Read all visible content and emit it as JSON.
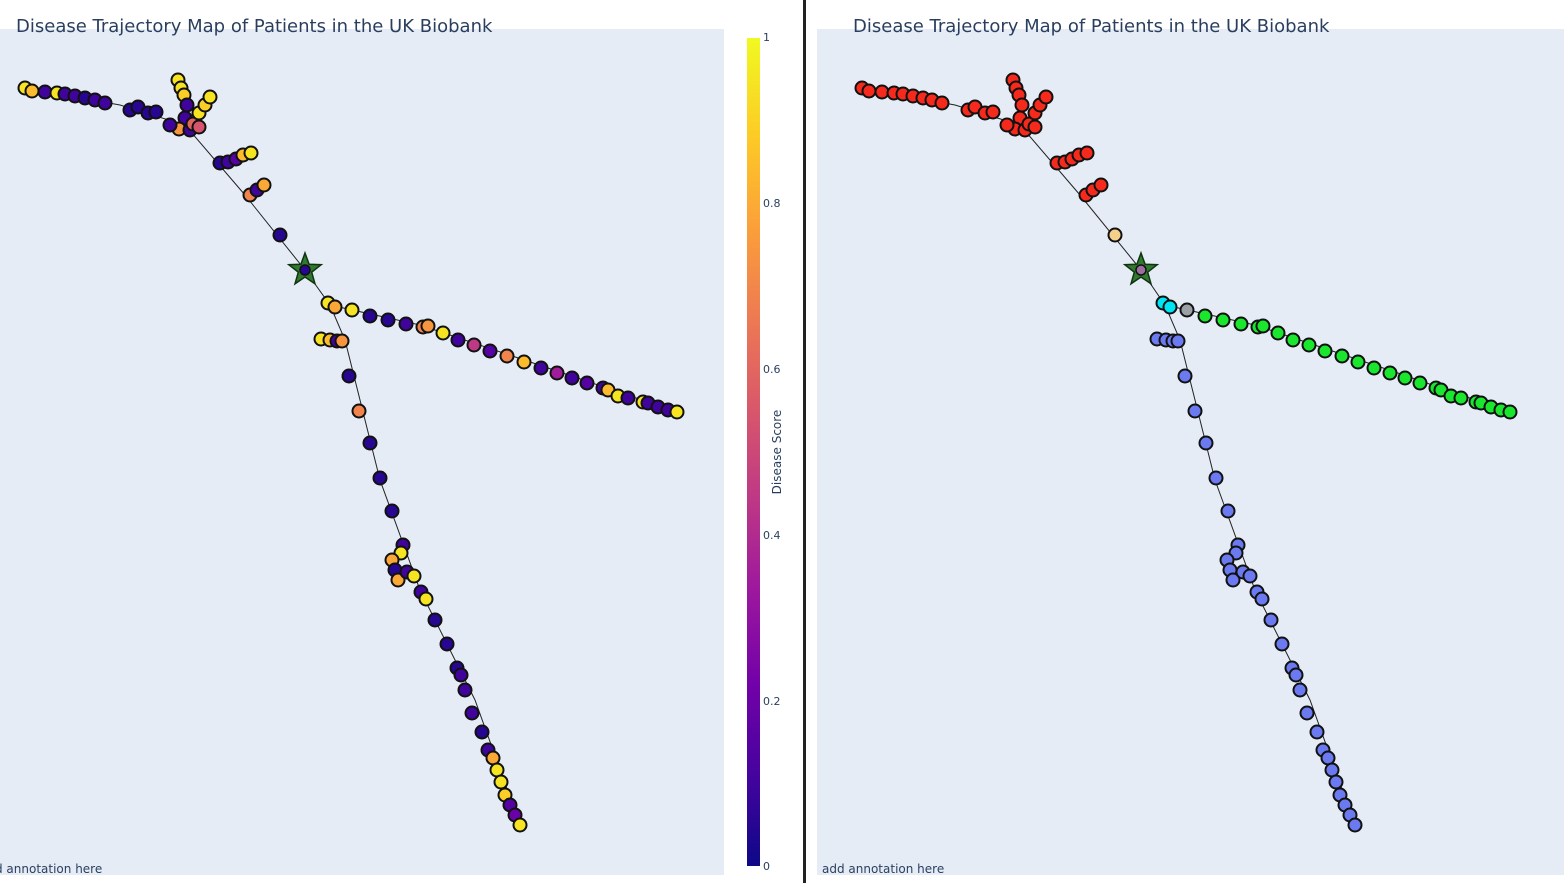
{
  "panels": {
    "left": {
      "title": "Disease Trajectory Map of Patients in the UK Biobank",
      "annotation": "d annotation here"
    },
    "right": {
      "title": "Disease Trajectory Map of Patients in the UK Biobank",
      "annotation": "add annotation here"
    }
  },
  "colorbar": {
    "title": "Disease Score",
    "ticks": [
      "0",
      "0.2",
      "0.4",
      "0.6",
      "0.8",
      "1"
    ],
    "colors": [
      "#0d0887",
      "#46039f",
      "#7201a8",
      "#9c179e",
      "#bd3786",
      "#d8576b",
      "#ed7953",
      "#fb9f3a",
      "#fdca26",
      "#f0f921"
    ]
  },
  "chart_data": [
    {
      "type": "scatter",
      "title": "Disease Trajectory Map of Patients in the UK Biobank",
      "color_by": "Disease Score",
      "root": {
        "x": 305,
        "y": 270,
        "score": 0.05
      },
      "edges": [
        [
          [
            25,
            88
          ],
          [
            120,
            105
          ],
          [
            185,
            125
          ],
          [
            245,
            195
          ],
          [
            305,
            270
          ]
        ],
        [
          [
            178,
            80
          ],
          [
            190,
            130
          ]
        ],
        [
          [
            208,
            97
          ],
          [
            190,
            130
          ]
        ],
        [
          [
            305,
            270
          ],
          [
            330,
            305
          ],
          [
            420,
            325
          ],
          [
            560,
            372
          ],
          [
            677,
            412
          ]
        ],
        [
          [
            330,
            305
          ],
          [
            345,
            340
          ],
          [
            380,
            480
          ],
          [
            420,
            590
          ],
          [
            475,
            700
          ],
          [
            520,
            825
          ]
        ]
      ],
      "series": [
        {
          "name": "branch-1",
          "group": "red",
          "points": [
            [
              25,
              88,
              0.95
            ],
            [
              32,
              91,
              0.85
            ],
            [
              45,
              92,
              0.1
            ],
            [
              57,
              93,
              0.95
            ],
            [
              65,
              94,
              0.1
            ],
            [
              75,
              96,
              0.1
            ],
            [
              85,
              98,
              0.05
            ],
            [
              95,
              100,
              0.1
            ],
            [
              105,
              103,
              0.1
            ],
            [
              130,
              110,
              0.05
            ],
            [
              138,
              107,
              0.05
            ],
            [
              148,
              113,
              0.05
            ],
            [
              156,
              112,
              0.05
            ]
          ]
        },
        {
          "name": "branch-2",
          "group": "red",
          "points": [
            [
              178,
              80,
              0.95
            ],
            [
              181,
              88,
              0.95
            ],
            [
              184,
              95,
              0.9
            ],
            [
              187,
              105,
              0.1
            ],
            [
              185,
              118,
              0.1
            ],
            [
              179,
              129,
              0.75
            ],
            [
              190,
              130,
              0.1
            ],
            [
              193,
              124,
              0.6
            ],
            [
              199,
              127,
              0.55
            ],
            [
              199,
              113,
              0.95
            ],
            [
              205,
              105,
              0.9
            ],
            [
              210,
              97,
              0.95
            ],
            [
              170,
              125,
              0.1
            ]
          ]
        },
        {
          "name": "branch-3",
          "group": "red",
          "points": [
            [
              220,
              163,
              0.05
            ],
            [
              228,
              162,
              0.1
            ],
            [
              236,
              159,
              0.15
            ],
            [
              243,
              155,
              0.85
            ],
            [
              251,
              153,
              0.95
            ],
            [
              250,
              195,
              0.7
            ],
            [
              257,
              190,
              0.1
            ],
            [
              264,
              185,
              0.8
            ],
            [
              280,
              235,
              0.05
            ]
          ]
        },
        {
          "name": "branch-4",
          "group": "green",
          "points": [
            [
              328,
              303,
              0.95
            ],
            [
              335,
              307,
              0.8
            ],
            [
              352,
              310,
              0.95
            ],
            [
              370,
              316,
              0.05
            ],
            [
              388,
              320,
              0.05
            ],
            [
              406,
              324,
              0.1
            ],
            [
              423,
              327,
              0.7
            ],
            [
              428,
              326,
              0.75
            ],
            [
              443,
              333,
              0.95
            ],
            [
              458,
              340,
              0.1
            ],
            [
              474,
              345,
              0.45
            ],
            [
              490,
              351,
              0.15
            ],
            [
              507,
              356,
              0.7
            ],
            [
              524,
              362,
              0.85
            ],
            [
              541,
              368,
              0.1
            ],
            [
              557,
              373,
              0.35
            ],
            [
              572,
              378,
              0.1
            ],
            [
              587,
              383,
              0.15
            ],
            [
              603,
              388,
              0.1
            ],
            [
              608,
              390,
              0.85
            ],
            [
              618,
              396,
              0.95
            ],
            [
              628,
              398,
              0.1
            ],
            [
              643,
              402,
              0.95
            ],
            [
              648,
              403,
              0.1
            ],
            [
              658,
              407,
              0.1
            ],
            [
              668,
              410,
              0.1
            ],
            [
              677,
              412,
              0.95
            ]
          ]
        },
        {
          "name": "branch-5",
          "group": "blue",
          "points": [
            [
              321,
              339,
              0.95
            ],
            [
              330,
              340,
              0.85
            ],
            [
              337,
              341,
              0.1
            ],
            [
              342,
              341,
              0.75
            ],
            [
              349,
              376,
              0.05
            ],
            [
              359,
              411,
              0.7
            ],
            [
              370,
              443,
              0.05
            ],
            [
              380,
              478,
              0.05
            ],
            [
              392,
              511,
              0.05
            ],
            [
              403,
              545,
              0.1
            ],
            [
              401,
              553,
              0.95
            ],
            [
              392,
              560,
              0.8
            ],
            [
              395,
              570,
              0.05
            ],
            [
              398,
              580,
              0.8
            ],
            [
              407,
              572,
              0.1
            ],
            [
              414,
              576,
              0.95
            ],
            [
              421,
              592,
              0.1
            ],
            [
              426,
              599,
              0.95
            ],
            [
              435,
              620,
              0.05
            ],
            [
              447,
              644,
              0.05
            ],
            [
              457,
              668,
              0.05
            ],
            [
              461,
              675,
              0.1
            ],
            [
              465,
              690,
              0.1
            ],
            [
              472,
              713,
              0.1
            ],
            [
              482,
              732,
              0.05
            ],
            [
              488,
              750,
              0.1
            ],
            [
              493,
              758,
              0.8
            ],
            [
              497,
              770,
              0.95
            ],
            [
              501,
              782,
              0.95
            ],
            [
              505,
              795,
              0.9
            ],
            [
              510,
              805,
              0.15
            ],
            [
              515,
              815,
              0.2
            ],
            [
              520,
              825,
              0.95
            ]
          ]
        }
      ]
    },
    {
      "type": "scatter",
      "title": "Disease Trajectory Map of Patients in the UK Biobank",
      "color_by": "group",
      "group_colors": {
        "red": "#f52a1c",
        "green": "#19e62d",
        "blue": "#6b7af0",
        "cyan": "#00e5f5",
        "gray": "#9aa0a6",
        "tan": "#f5d08a"
      },
      "root": {
        "x": 1141,
        "y": 270,
        "color": "#9b6fa0"
      },
      "edges": [
        [
          [
            862,
            88
          ],
          [
            955,
            105
          ],
          [
            1020,
            125
          ],
          [
            1080,
            195
          ],
          [
            1141,
            270
          ]
        ],
        [
          [
            1013,
            80
          ],
          [
            1025,
            130
          ]
        ],
        [
          [
            1045,
            97
          ],
          [
            1025,
            130
          ]
        ],
        [
          [
            1141,
            270
          ],
          [
            1165,
            305
          ],
          [
            1255,
            325
          ],
          [
            1395,
            372
          ],
          [
            1510,
            412
          ]
        ],
        [
          [
            1165,
            305
          ],
          [
            1180,
            340
          ],
          [
            1215,
            480
          ],
          [
            1255,
            590
          ],
          [
            1310,
            700
          ],
          [
            1355,
            825
          ]
        ]
      ],
      "series": [
        {
          "name": "red",
          "color": "#f52a1c",
          "points": [
            [
              862,
              88
            ],
            [
              869,
              91
            ],
            [
              882,
              92
            ],
            [
              894,
              93
            ],
            [
              903,
              94
            ],
            [
              913,
              96
            ],
            [
              923,
              98
            ],
            [
              932,
              100
            ],
            [
              942,
              103
            ],
            [
              968,
              110
            ],
            [
              975,
              107
            ],
            [
              985,
              113
            ],
            [
              993,
              112
            ],
            [
              1013,
              80
            ],
            [
              1016,
              88
            ],
            [
              1019,
              95
            ],
            [
              1022,
              105
            ],
            [
              1020,
              118
            ],
            [
              1015,
              129
            ],
            [
              1025,
              130
            ],
            [
              1029,
              124
            ],
            [
              1035,
              127
            ],
            [
              1035,
              113
            ],
            [
              1040,
              105
            ],
            [
              1046,
              97
            ],
            [
              1007,
              125
            ],
            [
              1057,
              163
            ],
            [
              1065,
              162
            ],
            [
              1072,
              159
            ],
            [
              1079,
              155
            ],
            [
              1087,
              153
            ],
            [
              1086,
              195
            ],
            [
              1093,
              190
            ],
            [
              1101,
              185
            ]
          ]
        },
        {
          "name": "tan",
          "color": "#f5d08a",
          "points": [
            [
              1115,
              235
            ]
          ]
        },
        {
          "name": "cyan",
          "color": "#00e5f5",
          "points": [
            [
              1163,
              303
            ],
            [
              1170,
              307
            ]
          ]
        },
        {
          "name": "gray",
          "color": "#9aa0a6",
          "points": [
            [
              1187,
              310
            ]
          ]
        },
        {
          "name": "green",
          "color": "#19e62d",
          "points": [
            [
              1205,
              316
            ],
            [
              1223,
              320
            ],
            [
              1241,
              324
            ],
            [
              1258,
              327
            ],
            [
              1263,
              326
            ],
            [
              1278,
              333
            ],
            [
              1293,
              340
            ],
            [
              1309,
              345
            ],
            [
              1325,
              351
            ],
            [
              1342,
              356
            ],
            [
              1358,
              362
            ],
            [
              1374,
              368
            ],
            [
              1390,
              373
            ],
            [
              1405,
              378
            ],
            [
              1420,
              383
            ],
            [
              1436,
              388
            ],
            [
              1441,
              390
            ],
            [
              1451,
              396
            ],
            [
              1461,
              398
            ],
            [
              1476,
              402
            ],
            [
              1481,
              403
            ],
            [
              1491,
              407
            ],
            [
              1501,
              410
            ],
            [
              1510,
              412
            ]
          ]
        },
        {
          "name": "blue",
          "color": "#6b7af0",
          "points": [
            [
              1157,
              339
            ],
            [
              1166,
              340
            ],
            [
              1173,
              341
            ],
            [
              1178,
              341
            ],
            [
              1185,
              376
            ],
            [
              1195,
              411
            ],
            [
              1206,
              443
            ],
            [
              1216,
              478
            ],
            [
              1228,
              511
            ],
            [
              1238,
              545
            ],
            [
              1236,
              553
            ],
            [
              1227,
              560
            ],
            [
              1230,
              570
            ],
            [
              1233,
              580
            ],
            [
              1243,
              572
            ],
            [
              1250,
              576
            ],
            [
              1257,
              592
            ],
            [
              1262,
              599
            ],
            [
              1271,
              620
            ],
            [
              1282,
              644
            ],
            [
              1292,
              668
            ],
            [
              1296,
              675
            ],
            [
              1300,
              690
            ],
            [
              1307,
              713
            ],
            [
              1317,
              732
            ],
            [
              1323,
              750
            ],
            [
              1328,
              758
            ],
            [
              1332,
              770
            ],
            [
              1336,
              782
            ],
            [
              1340,
              795
            ],
            [
              1345,
              805
            ],
            [
              1350,
              815
            ],
            [
              1355,
              825
            ]
          ]
        }
      ]
    }
  ]
}
